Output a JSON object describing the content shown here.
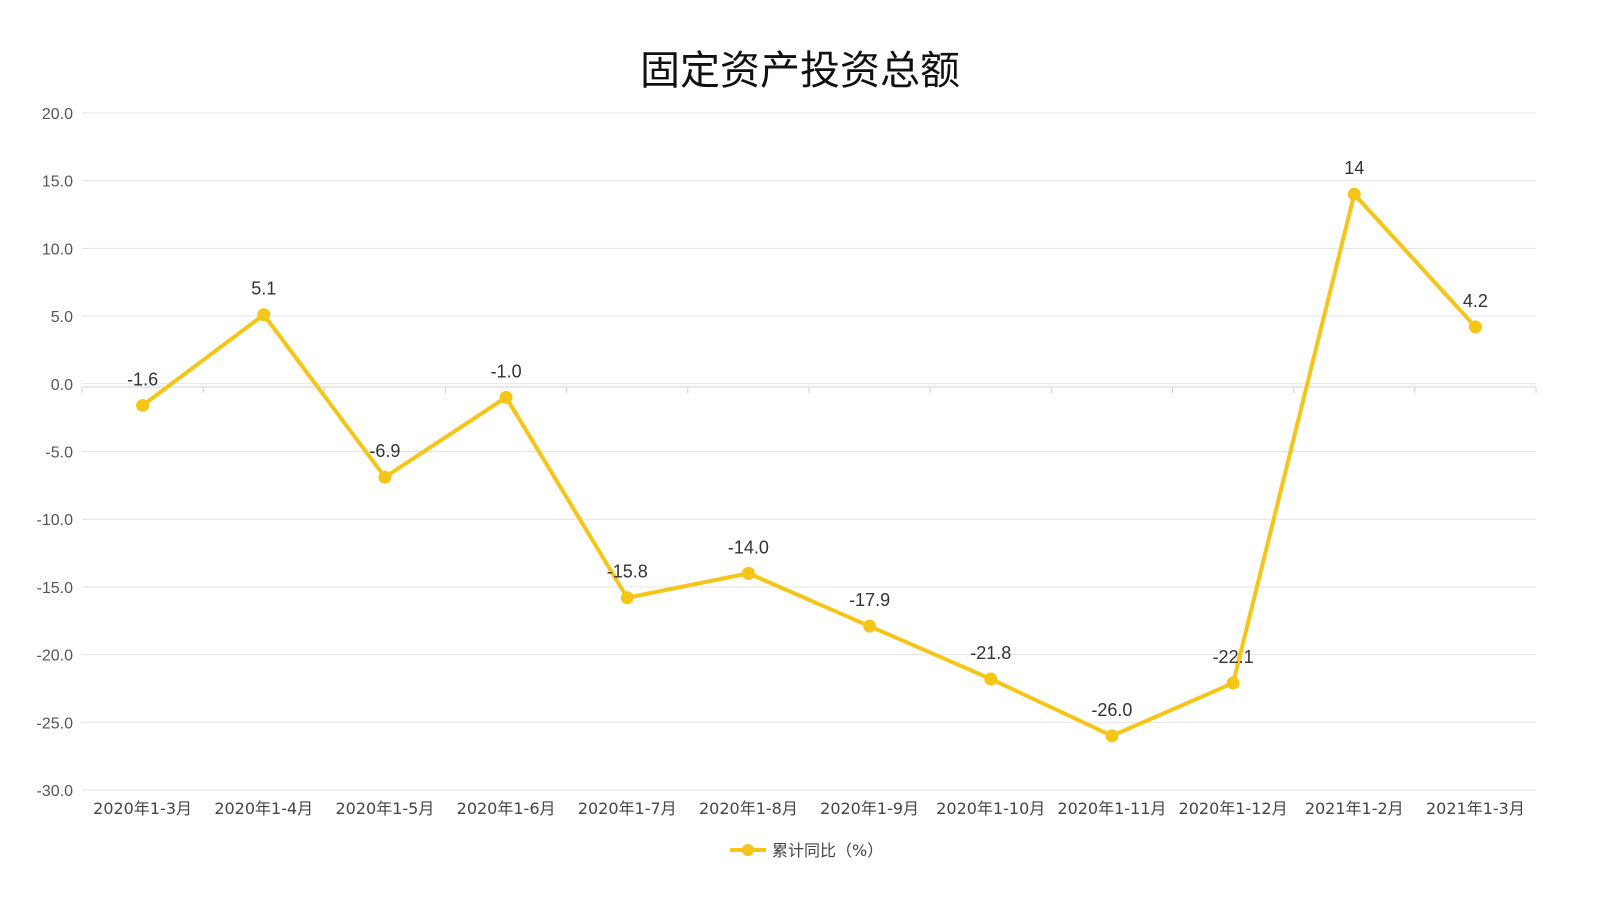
{
  "chart_data": {
    "type": "line",
    "title": "固定资产投资总额",
    "categories": [
      "2020年1-3月",
      "2020年1-4月",
      "2020年1-5月",
      "2020年1-6月",
      "2020年1-7月",
      "2020年1-8月",
      "2020年1-9月",
      "2020年1-10月",
      "2020年1-11月",
      "2020年1-12月",
      "2021年1-2月",
      "2021年1-3月"
    ],
    "series": [
      {
        "name": "累计同比（%）",
        "values": [
          -1.6,
          5.1,
          -6.9,
          -1.0,
          -15.8,
          -14.0,
          -17.9,
          -21.8,
          -26.0,
          -22.1,
          14,
          4.2
        ],
        "labels": [
          "-1.6",
          "5.1",
          "-6.9",
          "-1.0",
          "-15.8",
          "-14.0",
          "-17.9",
          "-21.8",
          "-26.0",
          "-22.1",
          "14",
          "4.2"
        ],
        "color": "#F5C518"
      }
    ],
    "ylim": [
      -30,
      20
    ],
    "yticks": [
      "20.0",
      "15.0",
      "10.0",
      "5.0",
      "0.0",
      "-5.0",
      "-10.0",
      "-15.0",
      "-20.0",
      "-25.0",
      "-30.0"
    ],
    "ytick_values": [
      20,
      15,
      10,
      5,
      0,
      -5,
      -10,
      -15,
      -20,
      -25,
      -30
    ],
    "grid": true,
    "legend": "bottom-center",
    "xlabel": "",
    "ylabel": ""
  }
}
